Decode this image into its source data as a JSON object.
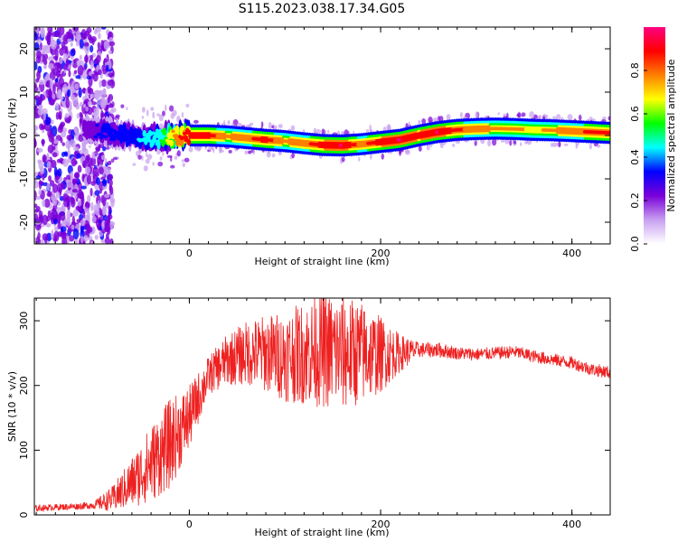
{
  "title": "S115.2023.038.17.34.G05",
  "colors": {
    "snr_line": "#ee2020"
  },
  "chart_data": [
    {
      "type": "heatmap",
      "xlabel": "Height of straight line (km)",
      "ylabel": "Frequency (Hz)",
      "xlim": [
        -162,
        440
      ],
      "ylim": [
        -25,
        25
      ],
      "x_ticks": [
        0,
        200,
        400
      ],
      "y_ticks": [
        20,
        10,
        0,
        -10,
        -20
      ],
      "colorbar": {
        "label": "Normalized spectral amplitude",
        "range": [
          0,
          1
        ],
        "ticks": [
          "0.0",
          "0.2",
          "0.4",
          "0.6",
          "0.8"
        ],
        "tick_values": [
          0.0,
          0.2,
          0.4,
          0.6,
          0.8
        ],
        "colormap": [
          "#ffffff",
          "#c8a0f0",
          "#7a00d8",
          "#0000ff",
          "#00ffff",
          "#00ff00",
          "#ffff00",
          "#ff8000",
          "#ff0000",
          "#ff0080"
        ]
      },
      "ridge": {
        "x": [
          -110,
          -90,
          -70,
          -50,
          -30,
          -10,
          0,
          20,
          40,
          60,
          80,
          100,
          120,
          140,
          160,
          180,
          200,
          220,
          240,
          260,
          280,
          300,
          320,
          340,
          360,
          380,
          400,
          420,
          440
        ],
        "freq": [
          1.5,
          0.8,
          0.2,
          -0.8,
          -0.5,
          -0.2,
          0.0,
          0.0,
          -0.2,
          -0.6,
          -1.0,
          -1.3,
          -1.8,
          -2.2,
          -2.3,
          -2.0,
          -1.5,
          -1.0,
          0.0,
          0.8,
          1.3,
          1.5,
          1.6,
          1.5,
          1.3,
          1.2,
          1.0,
          0.8,
          0.6
        ],
        "amplitude": [
          0.25,
          0.3,
          0.35,
          0.4,
          0.5,
          0.85,
          0.9,
          0.9,
          0.75,
          0.8,
          0.9,
          0.75,
          0.8,
          0.9,
          0.95,
          0.8,
          0.9,
          0.95,
          0.9,
          0.95,
          0.85,
          0.8,
          0.75,
          0.75,
          0.7,
          0.75,
          0.8,
          0.85,
          0.85
        ]
      }
    },
    {
      "type": "line",
      "xlabel": "Height of straight line (km)",
      "ylabel": "SNR (10 * v/v)",
      "xlim": [
        -162,
        440
      ],
      "ylim": [
        0,
        335
      ],
      "x_ticks": [
        0,
        200,
        400
      ],
      "y_ticks": [
        0,
        100,
        200,
        300
      ],
      "series": [
        {
          "x": [
            -162,
            -140,
            -120,
            -100,
            -80,
            -60,
            -40,
            -20,
            0,
            20,
            40,
            60,
            80,
            100,
            120,
            140,
            160,
            180,
            200,
            220,
            240,
            260,
            280,
            300,
            320,
            340,
            360,
            380,
            400,
            420,
            440
          ],
          "mean": [
            10,
            12,
            13,
            15,
            25,
            50,
            80,
            110,
            150,
            215,
            240,
            250,
            250,
            245,
            250,
            255,
            250,
            250,
            248,
            250,
            255,
            255,
            250,
            248,
            250,
            252,
            245,
            240,
            235,
            225,
            220
          ],
          "noise": [
            5,
            5,
            5,
            6,
            20,
            40,
            60,
            70,
            50,
            30,
            40,
            50,
            60,
            70,
            80,
            90,
            90,
            80,
            60,
            30,
            12,
            12,
            10,
            10,
            10,
            10,
            10,
            10,
            10,
            10,
            10
          ]
        }
      ]
    }
  ]
}
